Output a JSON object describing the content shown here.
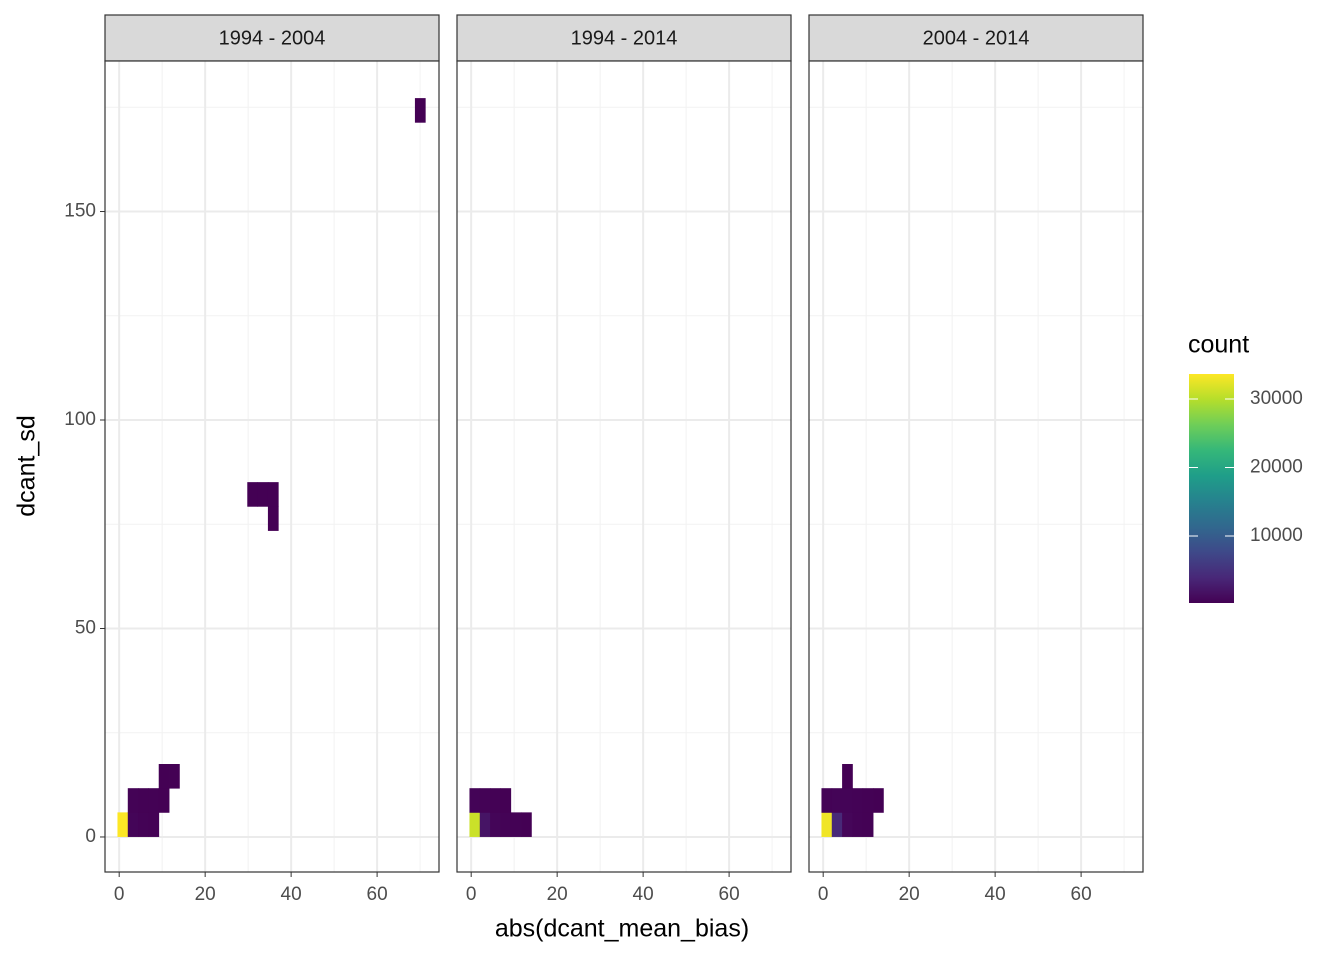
{
  "chart_data": {
    "type": "heatmap",
    "x_label": "abs(dcant_mean_bias)",
    "y_label": "dcant_sd",
    "xlim": [
      -3.3,
      74.4
    ],
    "ylim": [
      -8.4,
      186.1
    ],
    "xticks": [
      0,
      20,
      40,
      60
    ],
    "yticks": [
      0,
      50,
      100,
      150
    ],
    "x_minor_ticks": [
      10,
      30,
      50,
      70
    ],
    "y_minor_ticks": [
      25,
      75,
      125,
      175
    ],
    "binwidth": [
      2.4,
      5.8
    ],
    "legend_title": "count",
    "color_lim": [
      220,
      33650
    ],
    "color_ticks": [
      10000,
      20000,
      30000
    ],
    "colors": [
      "#440154",
      "#482878",
      "#3e4989",
      "#31688e",
      "#26828e",
      "#1f9e89",
      "#35b779",
      "#6ece58",
      "#b5de2b",
      "#fde725"
    ],
    "panels": [
      {
        "title": "1994 - 2004",
        "x": [
          0.8,
          3.2,
          5.6,
          8.0,
          3.2,
          5.6,
          8.0,
          10.4,
          10.4,
          12.8,
          31.0,
          33.4,
          35.8,
          35.8,
          70.0
        ],
        "y": [
          3,
          3,
          3,
          3,
          8.8,
          8.8,
          8.8,
          8.8,
          14.6,
          14.6,
          82.2,
          82.2,
          82.2,
          76.4,
          174.3
        ],
        "values": [
          34000,
          600,
          400,
          300,
          400,
          300,
          300,
          250,
          250,
          250,
          230,
          230,
          230,
          230,
          230
        ]
      },
      {
        "title": "1994 - 2014",
        "x": [
          0.8,
          3.2,
          5.6,
          8.0,
          10.4,
          12.8,
          0.8,
          3.2,
          5.6,
          8.0
        ],
        "y": [
          3,
          3,
          3,
          3,
          3,
          3,
          8.8,
          8.8,
          8.8,
          8.8
        ],
        "values": [
          31000,
          2000,
          600,
          400,
          300,
          250,
          500,
          400,
          300,
          250
        ]
      },
      {
        "title": "2004 - 2014",
        "x": [
          0.8,
          3.2,
          5.6,
          8.0,
          10.4,
          0.8,
          3.2,
          5.6,
          8.0,
          10.4,
          12.8,
          5.6
        ],
        "y": [
          3,
          3,
          3,
          3,
          3,
          8.8,
          8.8,
          8.8,
          8.8,
          8.8,
          8.8,
          14.6
        ],
        "values": [
          33000,
          4000,
          700,
          400,
          300,
          400,
          500,
          500,
          400,
          300,
          250,
          250
        ]
      }
    ]
  }
}
